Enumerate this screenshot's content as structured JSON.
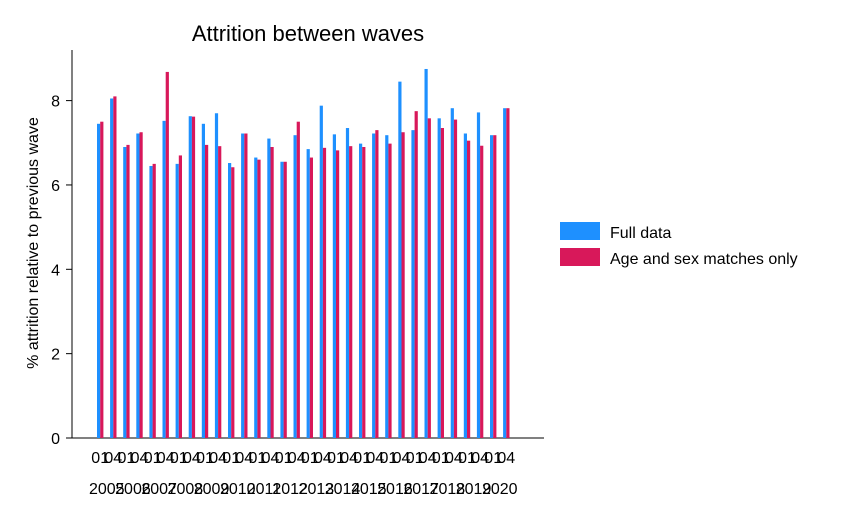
{
  "chart_data": {
    "type": "bar",
    "title": "Attrition between waves",
    "xlabel": "",
    "ylabel": "% attrition relative to previous wave",
    "ylim": [
      0,
      9.2
    ],
    "yticks": [
      0,
      2,
      4,
      6,
      8
    ],
    "grid": false,
    "legend": "right",
    "colors": {
      "full": "#1e90ff",
      "matched": "#d8185a"
    },
    "categories": [
      "2005 01",
      "2005 04",
      "2006 01",
      "2006 04",
      "2007 01",
      "2007 04",
      "2008 01",
      "2008 04",
      "2009 01",
      "2009 04",
      "2010 01",
      "2010 04",
      "2011 01",
      "2011 04",
      "2012 01",
      "2012 04",
      "2013 01",
      "2013 04",
      "2014 01",
      "2014 04",
      "2015 01",
      "2015 04",
      "2016 01",
      "2016 04",
      "2017 01",
      "2017 04",
      "2018 01",
      "2018 04",
      "2019 01",
      "2019 04",
      "2020 01",
      "2020 04"
    ],
    "tick_labels": {
      "quarters": [
        "01",
        "04",
        "01",
        "04",
        "01",
        "04",
        "01",
        "04",
        "01",
        "04",
        "01",
        "04",
        "01",
        "04",
        "01",
        "04",
        "01",
        "04",
        "01",
        "04",
        "01",
        "04",
        "01",
        "04",
        "01",
        "04",
        "01",
        "04",
        "01",
        "04",
        "01",
        "04"
      ],
      "years": [
        "2005",
        "2006",
        "2007",
        "2008",
        "2009",
        "2010",
        "2011",
        "2012",
        "2013",
        "2014",
        "2015",
        "2016",
        "2017",
        "2018",
        "2019",
        "2020"
      ]
    },
    "series": [
      {
        "name": "Full data",
        "values": [
          7.45,
          8.05,
          6.9,
          7.22,
          6.45,
          7.52,
          6.5,
          7.63,
          7.45,
          7.7,
          6.52,
          7.22,
          6.65,
          7.1,
          6.55,
          7.18,
          6.85,
          7.88,
          7.2,
          7.35,
          6.98,
          7.22,
          7.18,
          8.45,
          7.3,
          8.75,
          7.58,
          7.82,
          7.22,
          7.72,
          7.18,
          7.82
        ]
      },
      {
        "name": "Age and sex matches only",
        "values": [
          7.5,
          8.1,
          6.95,
          7.25,
          6.5,
          8.68,
          6.7,
          7.62,
          6.95,
          6.92,
          6.42,
          7.22,
          6.6,
          6.9,
          6.55,
          7.5,
          6.65,
          6.88,
          6.82,
          6.92,
          6.9,
          7.3,
          6.98,
          7.25,
          7.75,
          7.58,
          7.35,
          7.55,
          7.05,
          6.93,
          7.18,
          7.82
        ]
      }
    ]
  }
}
